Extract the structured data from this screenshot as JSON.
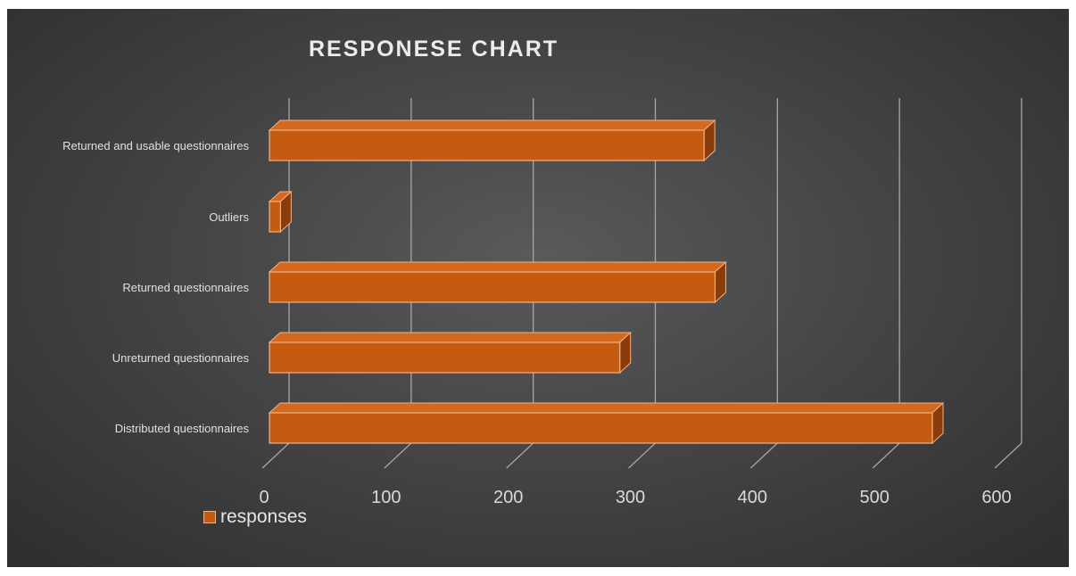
{
  "chart_data": {
    "type": "bar",
    "orientation": "horizontal",
    "title": "RESPONESE CHART",
    "categories": [
      "Returned and usable questionnaires",
      "Outliers",
      "Returned questionnaires",
      "Unreturned questionnaires",
      "Distributed questionnaires"
    ],
    "series": [
      {
        "name": "responses",
        "values": [
          356,
          9,
          365,
          287,
          543
        ]
      }
    ],
    "xlim": [
      0,
      600
    ],
    "xticks": [
      "0",
      "100",
      "200",
      "300",
      "400",
      "500",
      "600"
    ],
    "grid": true,
    "legend_position": "bottom-left",
    "colors": {
      "bar": "#c55a11",
      "bar_edge": "#f4b183",
      "bar_side": "#8a3d0a",
      "grid": "#a6a6a6"
    }
  }
}
